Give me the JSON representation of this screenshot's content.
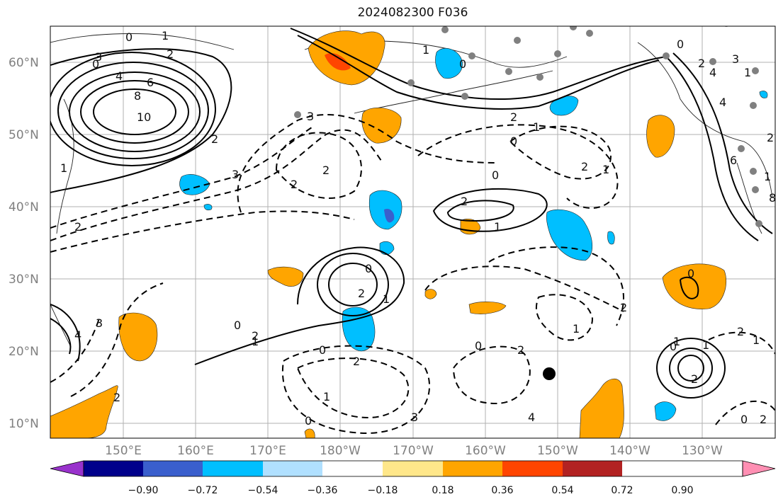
{
  "title": "2024082300 F036",
  "axes": {
    "lat_labels": [
      "60°N",
      "50°N",
      "40°N",
      "30°N",
      "20°N",
      "10°N"
    ],
    "lon_labels": [
      "150°E",
      "160°E",
      "170°E",
      "180°W",
      "170°W",
      "160°W",
      "150°W",
      "140°W",
      "130°W"
    ]
  },
  "colorbar": {
    "colors": [
      "#9932cc",
      "#00008b",
      "#3a5fcd",
      "#00bfff",
      "#b0e0ff",
      "#ffffff",
      "#ffe78a",
      "#ffa500",
      "#ff4500",
      "#b22222",
      "#ff8fb3"
    ],
    "tick_labels": [
      "−0.90",
      "−0.72",
      "−0.54",
      "−0.36",
      "−0.18",
      "0.18",
      "0.36",
      "0.54",
      "0.72",
      "0.90"
    ]
  },
  "contour_labels": [
    "0",
    "1",
    "2",
    "3",
    "4",
    "6",
    "8",
    "10",
    "0",
    "1",
    "2",
    "3",
    "2",
    "3",
    "2",
    "2",
    "2",
    "2",
    "0",
    "1",
    "0",
    "1",
    "2",
    "1",
    "0",
    "2",
    "1",
    "0",
    "1",
    "2",
    "3",
    "4",
    "0",
    "2",
    "1",
    "2",
    "3",
    "4",
    "6",
    "8",
    "0",
    "1",
    "2",
    "1",
    "2",
    "1",
    "0",
    "2",
    "1",
    "0",
    "2",
    "1",
    "2",
    "3",
    "4",
    "2",
    "0",
    "1",
    "2",
    "1",
    "0",
    "0",
    "4",
    "0"
  ],
  "colors": {
    "ocean_bg": "#ffffff",
    "positive_fill": "#ffa500",
    "negative_fill": "#00bfff"
  },
  "markers": {
    "station_dots": "gray",
    "storm_center": "black"
  }
}
